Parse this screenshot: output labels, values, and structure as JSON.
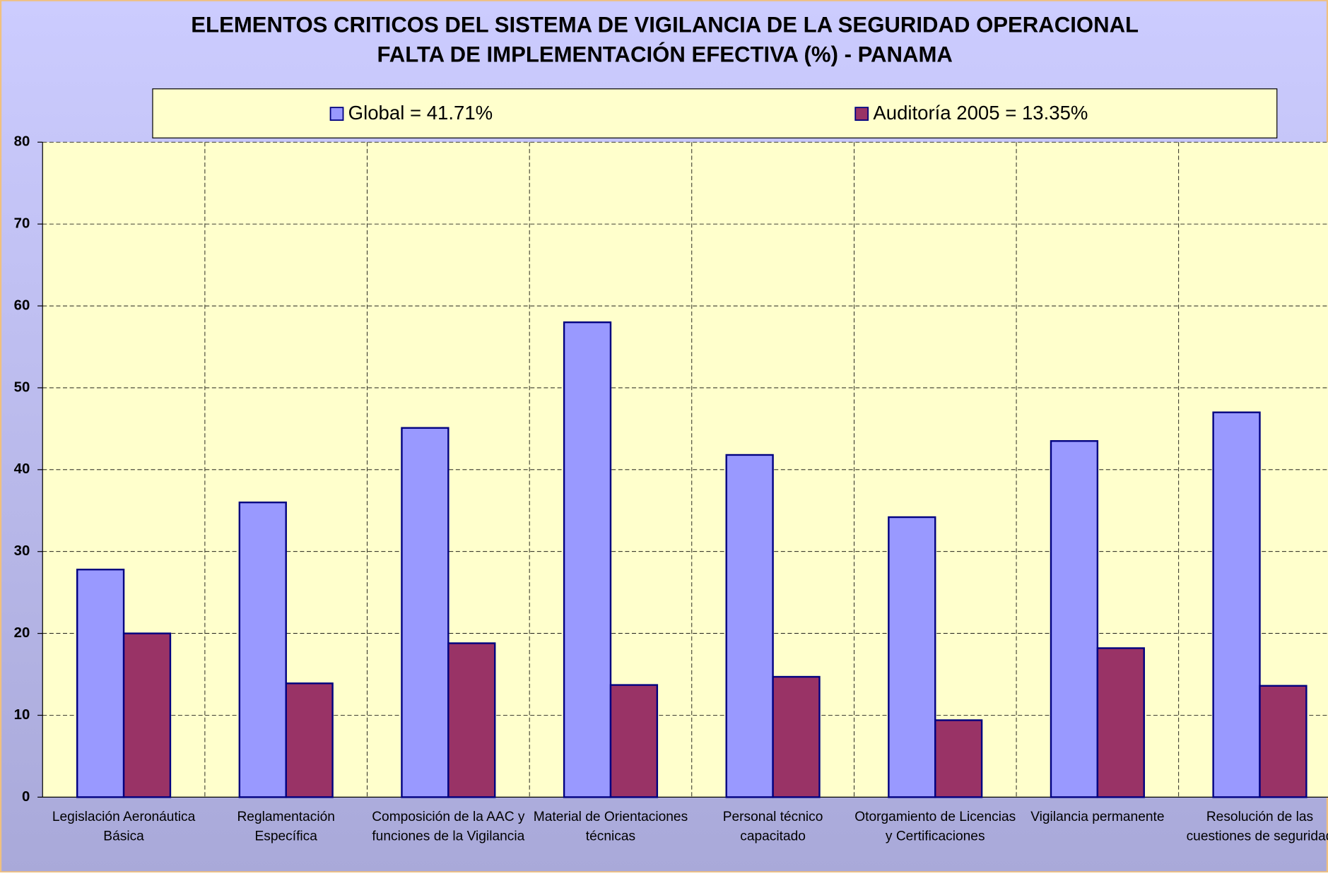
{
  "chart_data": {
    "type": "bar",
    "title": "ELEMENTOS CRITICOS DEL SISTEMA DE VIGILANCIA DE LA SEGURIDAD OPERACIONAL",
    "subtitle": "FALTA DE IMPLEMENTACIÓN EFECTIVA (%) - PANAMA",
    "categories": [
      "Legislación Aeronáutica Básica",
      "Reglamentación Específica",
      "Composición de la AAC y funciones de la Vigilancia",
      "Material de Orientaciones técnicas",
      "Personal técnico capacitado",
      "Otorgamiento de Licencias y Certificaciones",
      "Vigilancia permanente",
      "Resolución de las cuestiones de seguridad"
    ],
    "series": [
      {
        "name": "Global = 41.71%",
        "color": "#9999ff",
        "values": [
          27.8,
          36,
          45.1,
          58,
          41.8,
          34.2,
          43.5,
          47
        ]
      },
      {
        "name": "Auditoría 2005 = 13.35%",
        "color": "#993366",
        "values": [
          20,
          13.9,
          18.8,
          13.7,
          14.7,
          9.4,
          18.2,
          13.6
        ]
      }
    ],
    "ylim": [
      0,
      80
    ],
    "yticks": [
      0,
      10,
      20,
      30,
      40,
      50,
      60,
      70,
      80
    ],
    "grid": true,
    "legend": "top"
  }
}
